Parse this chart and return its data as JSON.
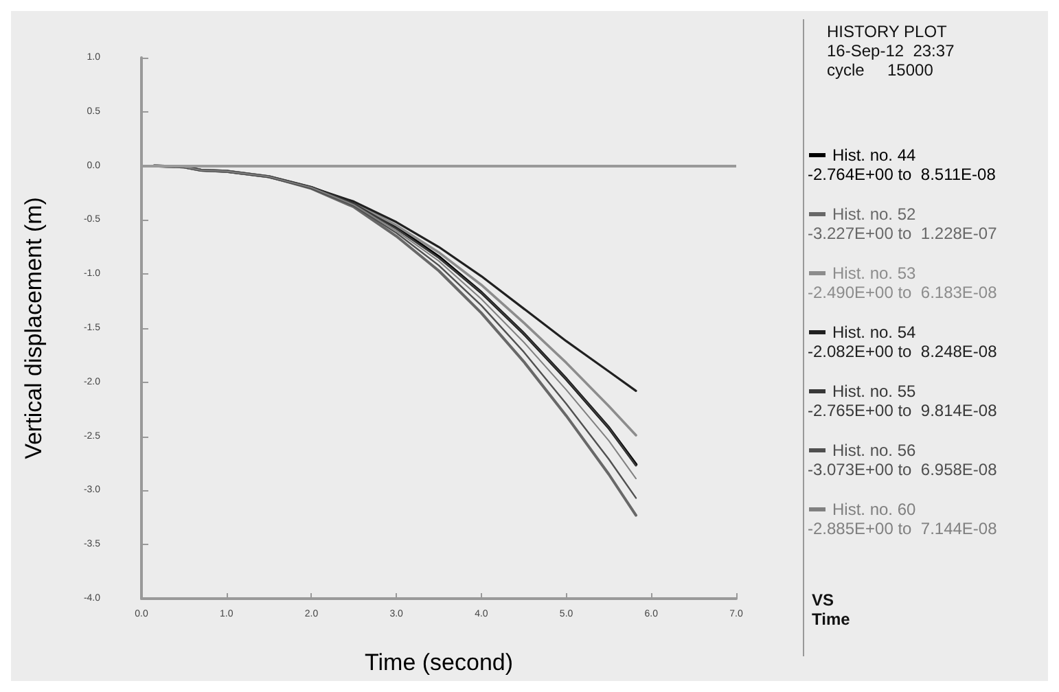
{
  "chart_data": {
    "type": "line",
    "xlabel": "Time (second)",
    "ylabel": "Vertical displacement (m)",
    "xlim": [
      0,
      7
    ],
    "xticks": [
      {
        "value": 0,
        "label": "0.0"
      },
      {
        "value": 1,
        "label": "1.0"
      },
      {
        "value": 2,
        "label": "2.0"
      },
      {
        "value": 3,
        "label": "3.0"
      },
      {
        "value": 4,
        "label": "4.0"
      },
      {
        "value": 5,
        "label": "5.0"
      },
      {
        "value": 6,
        "label": "6.0"
      },
      {
        "value": 7,
        "label": "7.0"
      }
    ],
    "ylim": [
      -4,
      1
    ],
    "yticks": [
      {
        "value": -4,
        "label": "-4.0"
      },
      {
        "value": -3.5,
        "label": "-3.5"
      },
      {
        "value": -3,
        "label": "-3.0"
      },
      {
        "value": -2.5,
        "label": "-2.5"
      },
      {
        "value": -2,
        "label": "-2.0"
      },
      {
        "value": -1.5,
        "label": "-1.5"
      },
      {
        "value": -1,
        "label": "-1.0"
      },
      {
        "value": -0.5,
        "label": "-0.5"
      },
      {
        "value": 0,
        "label": "0.0"
      },
      {
        "value": 0.5,
        "label": "0.5"
      },
      {
        "value": 1,
        "label": "1.0"
      }
    ],
    "x": [
      0.15,
      0.5,
      0.7,
      1.0,
      1.5,
      2.0,
      2.5,
      3.0,
      3.5,
      4.0,
      4.5,
      5.0,
      5.5,
      5.82
    ],
    "series": [
      {
        "name": "Hist. no. 44",
        "color": "#000000",
        "values": [
          0,
          -0.01,
          -0.04,
          -0.05,
          -0.1,
          -0.2,
          -0.35,
          -0.57,
          -0.84,
          -1.17,
          -1.55,
          -1.97,
          -2.42,
          -2.76
        ]
      },
      {
        "name": "Hist. no. 52",
        "color": "#686868",
        "values": [
          0,
          -0.01,
          -0.04,
          -0.05,
          -0.1,
          -0.21,
          -0.38,
          -0.65,
          -0.97,
          -1.36,
          -1.81,
          -2.31,
          -2.85,
          -3.23
        ]
      },
      {
        "name": "Hist. no. 53",
        "color": "#8c8c8c",
        "values": [
          0,
          -0.01,
          -0.04,
          -0.05,
          -0.1,
          -0.2,
          -0.34,
          -0.55,
          -0.8,
          -1.1,
          -1.45,
          -1.82,
          -2.22,
          -2.49
        ]
      },
      {
        "name": "Hist. no. 54",
        "color": "#202020",
        "values": [
          0,
          -0.01,
          -0.04,
          -0.05,
          -0.1,
          -0.2,
          -0.33,
          -0.52,
          -0.75,
          -1.02,
          -1.32,
          -1.62,
          -1.9,
          -2.08
        ]
      },
      {
        "name": "Hist. no. 55",
        "color": "#383838",
        "values": [
          0,
          -0.01,
          -0.04,
          -0.05,
          -0.1,
          -0.2,
          -0.35,
          -0.58,
          -0.85,
          -1.17,
          -1.55,
          -1.97,
          -2.42,
          -2.77
        ]
      },
      {
        "name": "Hist. no. 56",
        "color": "#505050",
        "values": [
          0,
          -0.01,
          -0.04,
          -0.05,
          -0.1,
          -0.21,
          -0.37,
          -0.62,
          -0.92,
          -1.29,
          -1.72,
          -2.2,
          -2.71,
          -3.07
        ]
      },
      {
        "name": "Hist. no. 60",
        "color": "#808080",
        "values": [
          0,
          -0.01,
          -0.04,
          -0.05,
          -0.1,
          -0.2,
          -0.36,
          -0.6,
          -0.88,
          -1.23,
          -1.63,
          -2.07,
          -2.54,
          -2.89
        ]
      }
    ],
    "ref_lines": [
      {
        "axis": "y",
        "value": 0,
        "color": "#999999"
      }
    ],
    "legend": "right",
    "grid": false,
    "marker": "none",
    "line_style": "solid",
    "annotations": [
      "HISTORY PLOT",
      "16-Sep-12  23:37",
      "cycle     15000",
      "-2.764E+00 to  8.511E-08",
      "-3.227E+00 to  1.228E-07",
      "-2.490E+00 to  6.183E-08",
      "-2.082E+00 to  8.248E-08",
      "-2.765E+00 to  9.814E-08",
      "-3.073E+00 to  6.958E-08",
      "-2.885E+00 to  7.144E-08",
      "VS",
      "Time"
    ]
  }
}
